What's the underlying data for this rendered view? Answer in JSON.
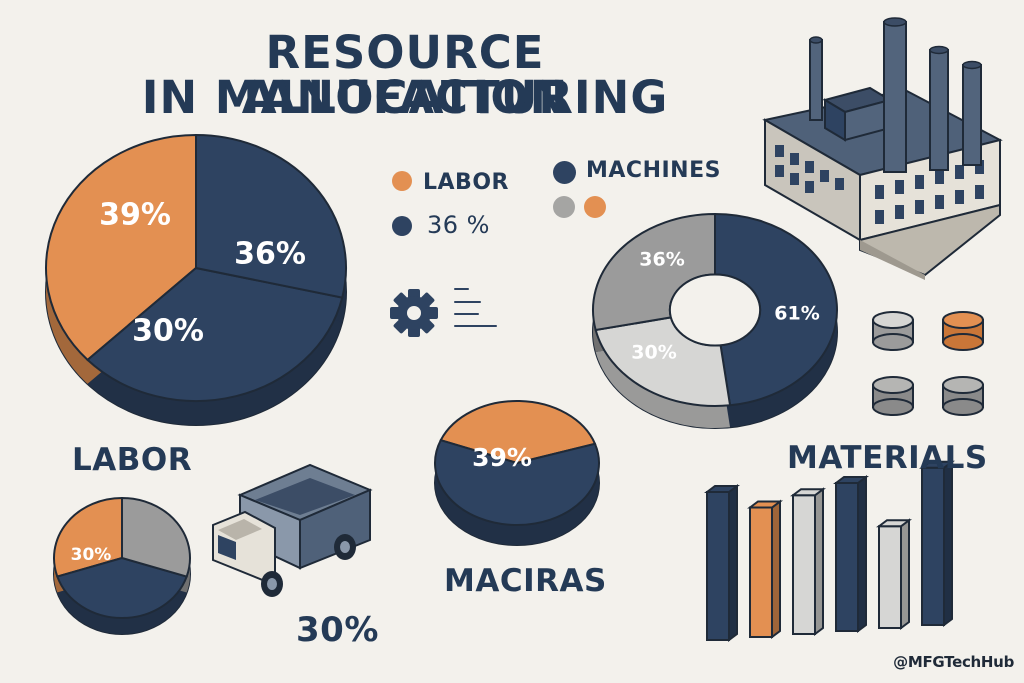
{
  "title": {
    "line1": "RESOURCE ALLOCATION",
    "line2": "IN MANUFACTURING"
  },
  "colors": {
    "navy": "#2e4361",
    "orange": "#e39052",
    "gray": "#9b9b9b",
    "lightgray": "#d6d6d4",
    "background": "#f3f1ec"
  },
  "legend": {
    "items": [
      {
        "label": "LABOR",
        "color": "orange"
      },
      {
        "label": "MACHINES",
        "color": "navy"
      },
      {
        "label": "36 %",
        "color": "navy"
      }
    ],
    "extra_dots": [
      "gray",
      "orange"
    ]
  },
  "labels": {
    "labor": "LABOR",
    "materials": "MATERIALS",
    "maciras": "MACIRAS",
    "truck_value": "30%"
  },
  "handle": "@MFGTechHub",
  "icons": [
    "gear-icon",
    "factory-icon",
    "truck-icon"
  ],
  "chart_data": [
    {
      "type": "pie",
      "slices": [
        {
          "label": "39%",
          "value": 39,
          "color": "orange"
        },
        {
          "label": "36%",
          "value": 36,
          "color": "navy"
        },
        {
          "label": "30%",
          "value": 30,
          "color": "navy"
        }
      ]
    },
    {
      "type": "pie",
      "subtype": "donut",
      "slices": [
        {
          "label": "61%",
          "value": 61,
          "color": "navy"
        },
        {
          "label": "30%",
          "value": 30,
          "color": "lightgray"
        },
        {
          "label": "36%",
          "value": 36,
          "color": "gray"
        }
      ]
    },
    {
      "type": "pie",
      "slices": [
        {
          "label": "39%",
          "value": 39,
          "color": "orange"
        },
        {
          "label": "",
          "value": 61,
          "color": "navy"
        }
      ]
    },
    {
      "type": "pie",
      "slices": [
        {
          "label": "30%",
          "value": 30,
          "color": "orange"
        },
        {
          "label": "",
          "value": 40,
          "color": "navy"
        },
        {
          "label": "",
          "value": 30,
          "color": "gray"
        }
      ]
    },
    {
      "type": "bar",
      "values": [
        8,
        7,
        7.5,
        8,
        5.5,
        8.5
      ],
      "colors": [
        "navy",
        "orange",
        "lightgray",
        "navy",
        "lightgray",
        "navy"
      ]
    }
  ]
}
